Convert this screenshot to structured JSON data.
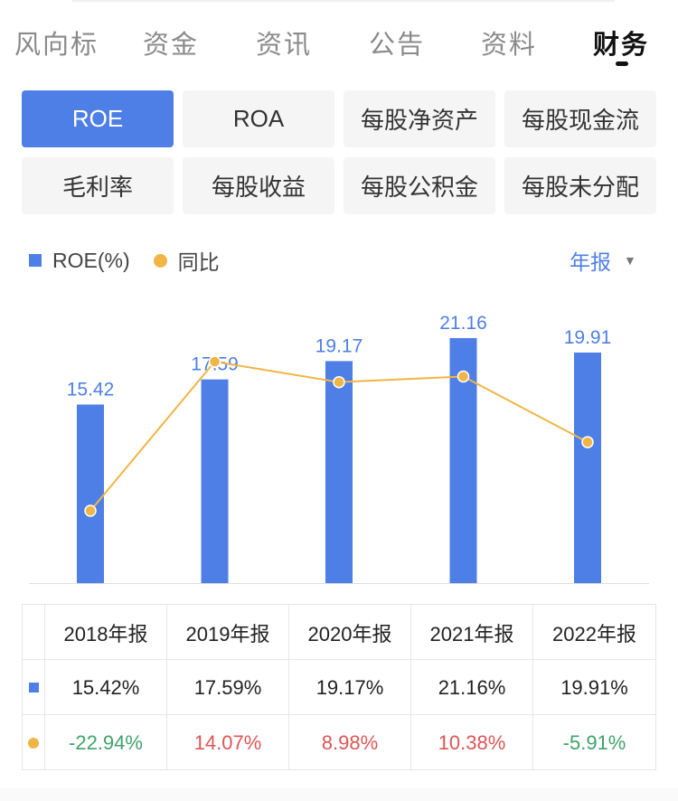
{
  "tabs": [
    {
      "label": "风向标",
      "active": false
    },
    {
      "label": "资金",
      "active": false
    },
    {
      "label": "资讯",
      "active": false
    },
    {
      "label": "公告",
      "active": false
    },
    {
      "label": "资料",
      "active": false
    },
    {
      "label": "财务",
      "active": true
    }
  ],
  "metrics": [
    {
      "label": "ROE",
      "active": true
    },
    {
      "label": "ROA",
      "active": false
    },
    {
      "label": "每股净资产",
      "active": false
    },
    {
      "label": "每股现金流",
      "active": false
    },
    {
      "label": "毛利率",
      "active": false
    },
    {
      "label": "每股收益",
      "active": false
    },
    {
      "label": "每股公积金",
      "active": false
    },
    {
      "label": "每股未分配",
      "active": false
    }
  ],
  "legend": {
    "bar_label": "ROE(%)",
    "line_label": "同比"
  },
  "period_selector": {
    "value": "年报",
    "icon": "dropdown-triangle-icon"
  },
  "colors": {
    "accent": "#4e7fe6",
    "line": "#f0b545",
    "positive": "#dd5555",
    "negative": "#3fa36b"
  },
  "chart_data": {
    "type": "bar",
    "categories": [
      "2018年报",
      "2019年报",
      "2020年报",
      "2021年报",
      "2022年报"
    ],
    "series": [
      {
        "name": "ROE(%)",
        "type": "bar",
        "values": [
          15.42,
          17.59,
          19.17,
          21.16,
          19.91
        ]
      },
      {
        "name": "同比",
        "type": "line",
        "values": [
          -22.94,
          14.07,
          8.98,
          10.38,
          -5.91
        ]
      }
    ],
    "grid": false,
    "legend_position": "top-left"
  },
  "table": {
    "headers": [
      "2018年报",
      "2019年报",
      "2020年报",
      "2021年报",
      "2022年报"
    ],
    "roe_row": [
      "15.42%",
      "17.59%",
      "19.17%",
      "21.16%",
      "19.91%"
    ],
    "yoy_row": [
      "-22.94%",
      "14.07%",
      "8.98%",
      "10.38%",
      "-5.91%"
    ]
  }
}
